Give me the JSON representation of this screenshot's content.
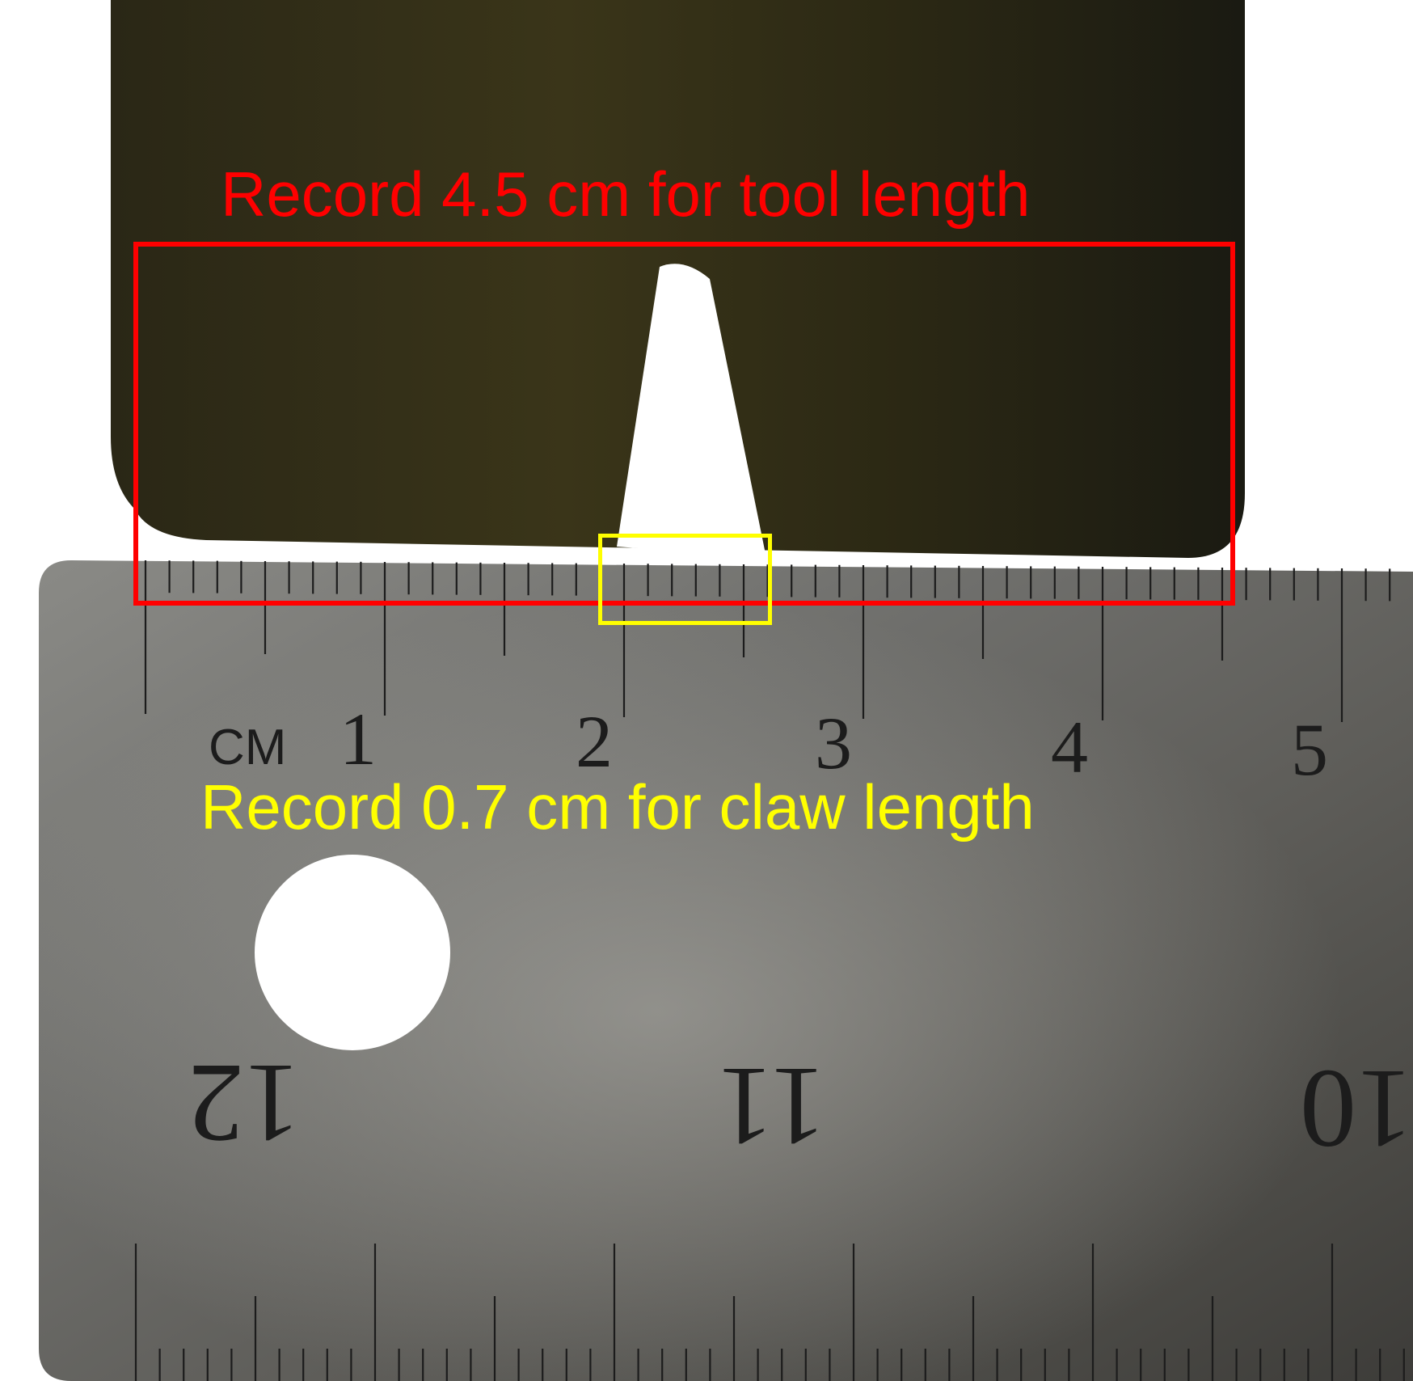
{
  "annotations": {
    "tool_length": {
      "text": "Record 4.5 cm for tool length",
      "color": "#ff0000"
    },
    "claw_length": {
      "text": "Record 0.7 cm for claw length",
      "color": "#ffff00"
    }
  },
  "ruler": {
    "unit_label": "CM",
    "top_scale_numbers": [
      "1",
      "2",
      "3",
      "4",
      "5"
    ],
    "bottom_scale_numbers": [
      "12",
      "11",
      "10"
    ]
  },
  "colors": {
    "tool_body": "#1f1d12",
    "ruler_metal": "#7a7a77",
    "tick_ink": "#1c1c1c",
    "background": "#ffffff"
  }
}
